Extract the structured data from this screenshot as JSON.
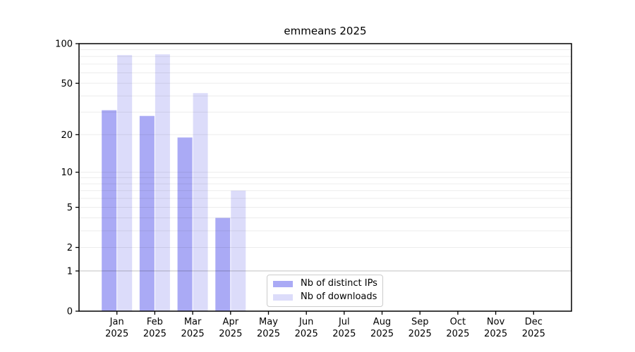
{
  "chart_data": {
    "type": "bar",
    "title": "emmeans 2025",
    "categories": [
      "Jan 2025",
      "Feb 2025",
      "Mar 2025",
      "Apr 2025",
      "May 2025",
      "Jun 2025",
      "Jul 2025",
      "Aug 2025",
      "Sep 2025",
      "Oct 2025",
      "Nov 2025",
      "Dec 2025"
    ],
    "series": [
      {
        "name": "Nb of distinct IPs",
        "color": "#aaaaf5",
        "values": [
          31,
          28,
          19,
          4,
          null,
          null,
          null,
          null,
          null,
          null,
          null,
          null
        ]
      },
      {
        "name": "Nb of downloads",
        "color": "#dcdcfa",
        "values": [
          82,
          83,
          42,
          7,
          null,
          null,
          null,
          null,
          null,
          null,
          null,
          null
        ]
      }
    ],
    "yscale": "log1p",
    "ylim": [
      0,
      100
    ],
    "yticks": [
      0,
      1,
      2,
      5,
      10,
      20,
      50,
      100
    ],
    "grid": "horizontal",
    "grid_minor_values": [
      2,
      3,
      4,
      5,
      6,
      7,
      8,
      9,
      10,
      20,
      30,
      40,
      50,
      60,
      70,
      80,
      90
    ],
    "grid_emphasis_value": 1,
    "grid_color": "#ebebeb",
    "grid_emphasis_color": "#c2c2c2",
    "axis_color": "#000000",
    "legend_position": "inside lower center"
  }
}
